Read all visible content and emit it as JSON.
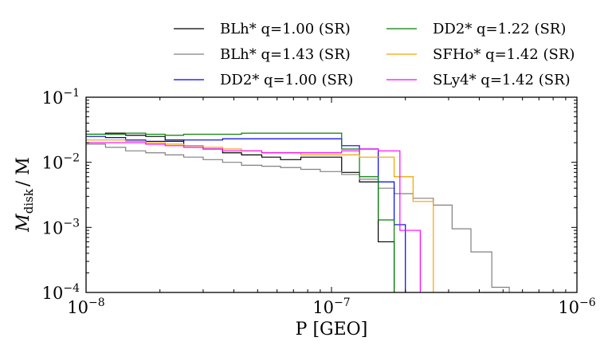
{
  "chart_data": {
    "type": "step",
    "title": "",
    "xlabel": "P [GEO]",
    "ylabel_main": "M",
    "ylabel_sub": "disk",
    "ylabel_tail": "/ M",
    "x_scale": "log",
    "y_scale": "log",
    "xlim": [
      1e-08,
      1e-06
    ],
    "ylim": [
      0.0001,
      0.1
    ],
    "x_ticks": [
      {
        "value": 1e-08,
        "base": "10",
        "exp": "−8"
      },
      {
        "value": 1e-07,
        "base": "10",
        "exp": "−7"
      },
      {
        "value": 1e-06,
        "base": "10",
        "exp": "−6"
      }
    ],
    "y_ticks": [
      {
        "value": 0.0001,
        "base": "10",
        "exp": "−4"
      },
      {
        "value": 0.001,
        "base": "10",
        "exp": "−3"
      },
      {
        "value": 0.01,
        "base": "10",
        "exp": "−2"
      },
      {
        "value": 0.1,
        "base": "10",
        "exp": "−1"
      }
    ],
    "legend_position": "top, above plot, two columns",
    "series": [
      {
        "name": "BLh* q=1.00 (SR)",
        "color": "#000000",
        "edges": [
          1e-08,
          1.2e-08,
          1.45e-08,
          1.75e-08,
          2.1e-08,
          2.5e-08,
          3e-08,
          3.6e-08,
          4.3e-08,
          5.2e-08,
          6.2e-08,
          7.5e-08,
          9e-08,
          1.1e-07,
          1.3e-07,
          1.55e-07,
          1.8e-07
        ],
        "values": [
          0.027,
          0.028,
          0.026,
          0.025,
          0.022,
          0.018,
          0.016,
          0.014,
          0.013,
          0.012,
          0.011,
          0.012,
          0.012,
          0.007,
          0.005,
          0.0006,
          0.0001
        ]
      },
      {
        "name": "BLh* q=1.43 (SR)",
        "color": "#808080",
        "edges": [
          1e-08,
          1.2e-08,
          1.45e-08,
          1.75e-08,
          2.1e-08,
          2.5e-08,
          3e-08,
          3.6e-08,
          4.3e-08,
          5.2e-08,
          6.2e-08,
          7.5e-08,
          9e-08,
          1.1e-07,
          1.3e-07,
          1.55e-07,
          1.8e-07,
          2.15e-07,
          2.6e-07,
          3.1e-07,
          3.7e-07,
          4.5e-07,
          5.3e-07
        ],
        "values": [
          0.019,
          0.017,
          0.015,
          0.014,
          0.013,
          0.012,
          0.011,
          0.01,
          0.009,
          0.0087,
          0.0083,
          0.0078,
          0.0072,
          0.0065,
          0.0055,
          0.004,
          0.0033,
          0.0028,
          0.0022,
          0.00095,
          0.00042,
          0.00012,
          0.0001
        ]
      },
      {
        "name": "DD2* q=1.00 (SR)",
        "color": "#0000ee",
        "edges": [
          1e-08,
          1.2e-08,
          1.45e-08,
          1.75e-08,
          2.1e-08,
          2.5e-08,
          3e-08,
          3.6e-08,
          4.3e-08,
          5.2e-08,
          6.2e-08,
          7.5e-08,
          9e-08,
          1.1e-07,
          1.3e-07,
          1.55e-07,
          1.8e-07,
          2e-07
        ],
        "values": [
          0.025,
          0.024,
          0.022,
          0.021,
          0.021,
          0.022,
          0.022,
          0.023,
          0.023,
          0.023,
          0.023,
          0.023,
          0.023,
          0.018,
          0.016,
          0.005,
          0.0011,
          0.0001
        ]
      },
      {
        "name": "DD2* q=1.22 (SR)",
        "color": "#008000",
        "edges": [
          1e-08,
          1.2e-08,
          1.45e-08,
          1.75e-08,
          2.1e-08,
          2.5e-08,
          3e-08,
          3.6e-08,
          4.3e-08,
          5.2e-08,
          6.2e-08,
          7.5e-08,
          9e-08,
          1.1e-07,
          1.3e-07,
          1.55e-07,
          1.8e-07
        ],
        "values": [
          0.027,
          0.027,
          0.028,
          0.027,
          0.026,
          0.027,
          0.027,
          0.027,
          0.028,
          0.028,
          0.028,
          0.028,
          0.028,
          0.016,
          0.006,
          0.0013,
          0.0001
        ]
      },
      {
        "name": "SFHo* q=1.42 (SR)",
        "color": "#f4a300",
        "edges": [
          1e-08,
          1.2e-08,
          1.45e-08,
          1.75e-08,
          2.1e-08,
          2.5e-08,
          3e-08,
          3.6e-08,
          4.3e-08,
          5.2e-08,
          6.2e-08,
          7.5e-08,
          9e-08,
          1.1e-07,
          1.3e-07,
          1.55e-07,
          1.8e-07,
          2.15e-07,
          2.6e-07
        ],
        "values": [
          0.022,
          0.022,
          0.021,
          0.02,
          0.019,
          0.018,
          0.017,
          0.016,
          0.015,
          0.014,
          0.014,
          0.013,
          0.013,
          0.013,
          0.012,
          0.012,
          0.006,
          0.0025,
          0.0001
        ]
      },
      {
        "name": "SLy4* q=1.42 (SR)",
        "color": "#ff00ff",
        "edges": [
          1e-08,
          1.2e-08,
          1.45e-08,
          1.75e-08,
          2.1e-08,
          2.5e-08,
          3e-08,
          3.6e-08,
          4.3e-08,
          5.2e-08,
          6.2e-08,
          7.5e-08,
          9e-08,
          1.1e-07,
          1.3e-07,
          1.55e-07,
          1.9e-07,
          2.3e-07
        ],
        "values": [
          0.02,
          0.02,
          0.02,
          0.019,
          0.018,
          0.017,
          0.016,
          0.015,
          0.015,
          0.014,
          0.014,
          0.014,
          0.014,
          0.015,
          0.016,
          0.015,
          0.0009,
          0.0001
        ]
      }
    ]
  }
}
